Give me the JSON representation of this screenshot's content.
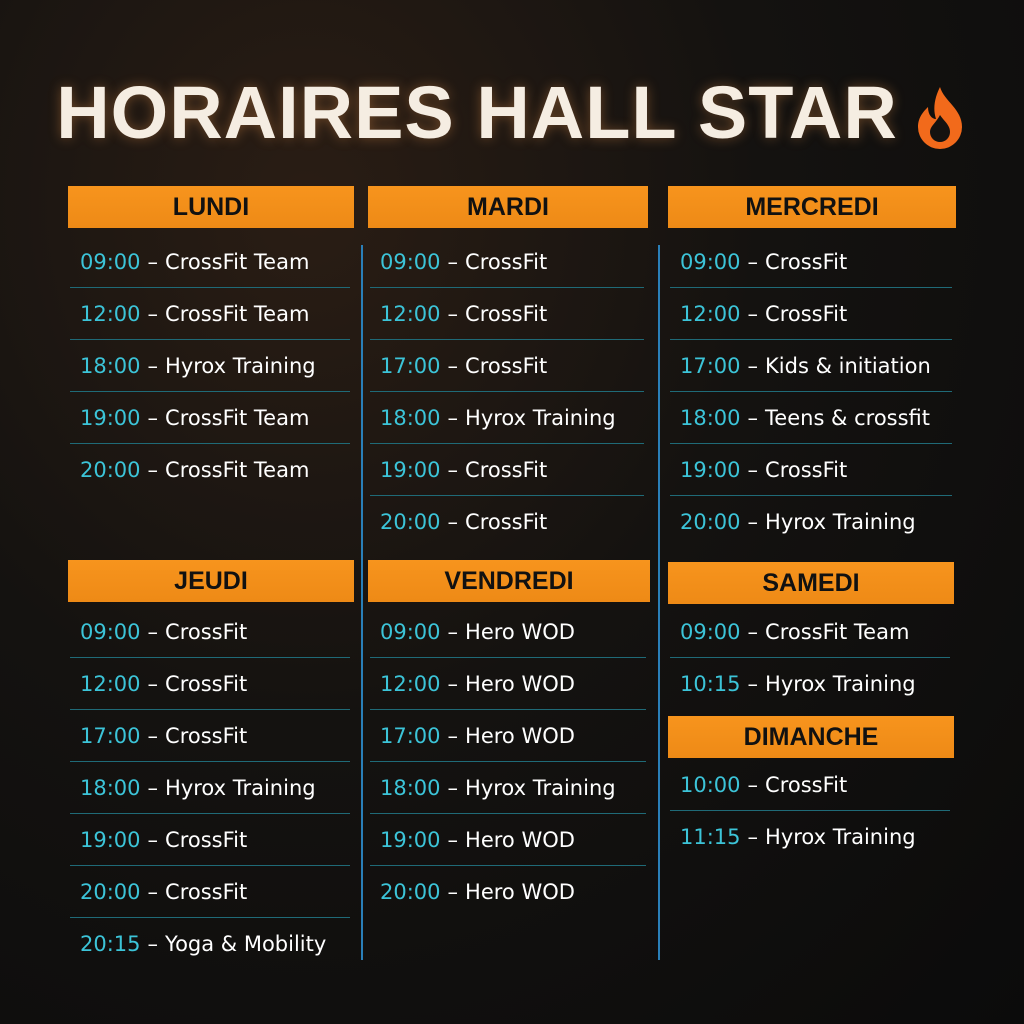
{
  "title": "HORAIRES HALL STAR",
  "title_icon": "fire-icon",
  "colors": {
    "header_bg": "#f7941d",
    "time": "#3cc4d8",
    "divider": "#2a7fb8"
  },
  "days": [
    {
      "name": "LUNDI",
      "sessions": [
        {
          "time": "09:00",
          "label": "CrossFit Team"
        },
        {
          "time": "12:00",
          "label": "CrossFit Team"
        },
        {
          "time": "18:00",
          "label": "Hyrox Training"
        },
        {
          "time": "19:00",
          "label": "CrossFit Team"
        },
        {
          "time": "20:00",
          "label": "CrossFit Team"
        }
      ]
    },
    {
      "name": "MARDI",
      "sessions": [
        {
          "time": "09:00",
          "label": "CrossFit"
        },
        {
          "time": "12:00",
          "label": "CrossFit"
        },
        {
          "time": "17:00",
          "label": "CrossFit"
        },
        {
          "time": "18:00",
          "label": "Hyrox Training"
        },
        {
          "time": "19:00",
          "label": "CrossFit"
        },
        {
          "time": "20:00",
          "label": "CrossFit"
        }
      ]
    },
    {
      "name": "MERCREDI",
      "sessions": [
        {
          "time": "09:00",
          "label": "CrossFit"
        },
        {
          "time": "12:00",
          "label": "CrossFit"
        },
        {
          "time": "17:00",
          "label": "Kids & initiation"
        },
        {
          "time": "18:00",
          "label": "Teens & crossfit"
        },
        {
          "time": "19:00",
          "label": "CrossFit"
        },
        {
          "time": "20:00",
          "label": "Hyrox Training"
        }
      ]
    },
    {
      "name": "JEUDI",
      "sessions": [
        {
          "time": "09:00",
          "label": "CrossFit"
        },
        {
          "time": "12:00",
          "label": "CrossFit"
        },
        {
          "time": "17:00",
          "label": "CrossFit"
        },
        {
          "time": "18:00",
          "label": "Hyrox Training"
        },
        {
          "time": "19:00",
          "label": "CrossFit"
        },
        {
          "time": "20:00",
          "label": "CrossFit"
        },
        {
          "time": "20:15",
          "label": "Yoga & Mobility"
        }
      ]
    },
    {
      "name": "VENDREDI",
      "sessions": [
        {
          "time": "09:00",
          "label": "Hero WOD"
        },
        {
          "time": "12:00",
          "label": "Hero WOD"
        },
        {
          "time": "17:00",
          "label": "Hero WOD"
        },
        {
          "time": "18:00",
          "label": "Hyrox Training"
        },
        {
          "time": "19:00",
          "label": "Hero WOD"
        },
        {
          "time": "20:00",
          "label": "Hero WOD"
        }
      ]
    },
    {
      "name": "SAMEDI",
      "sessions": [
        {
          "time": "09:00",
          "label": "CrossFit Team"
        },
        {
          "time": "10:15",
          "label": "Hyrox Training"
        }
      ]
    },
    {
      "name": "DIMANCHE",
      "sessions": [
        {
          "time": "10:00",
          "label": "CrossFit"
        },
        {
          "time": "11:15",
          "label": "Hyrox Training"
        }
      ]
    }
  ]
}
